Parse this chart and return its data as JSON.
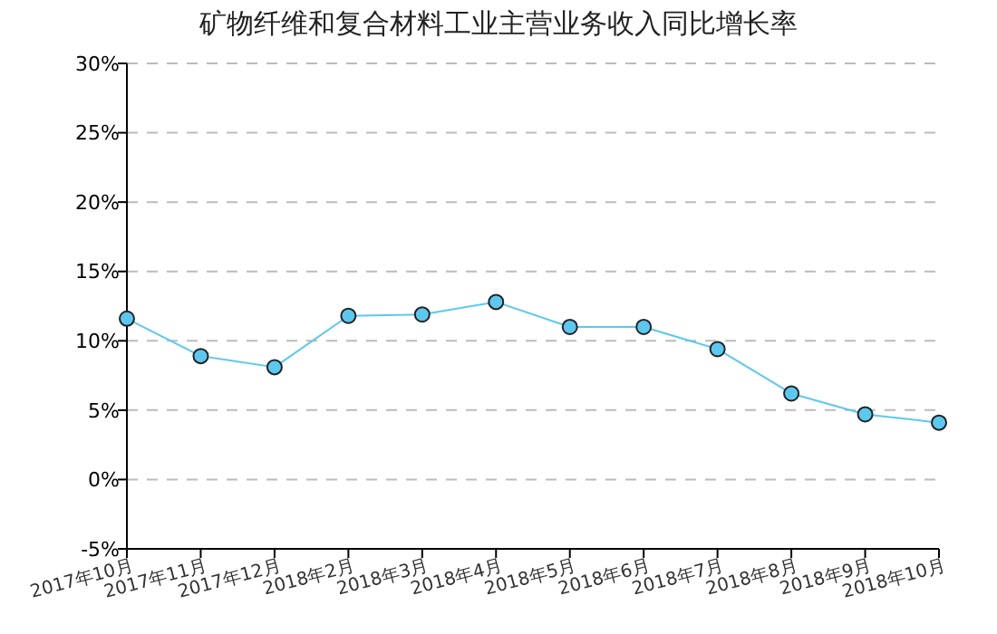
{
  "chart_data": {
    "type": "line",
    "title": "矿物纤维和复合材料工业主营业务收入同比增长率",
    "categories": [
      "2017年10月",
      "2017年11月",
      "2017年12月",
      "2018年2月",
      "2018年3月",
      "2018年4月",
      "2018年5月",
      "2018年6月",
      "2018年7月",
      "2018年8月",
      "2018年9月",
      "2018年10月"
    ],
    "series": [
      {
        "color": "#5bc8f0",
        "values": [
          11.6,
          8.9,
          8.1,
          11.8,
          11.9,
          12.8,
          11.0,
          11.0,
          9.4,
          6.2,
          4.7,
          4.1
        ]
      }
    ],
    "ylim": [
      -5,
      30
    ],
    "yticks": [
      {
        "value": -5,
        "label": "-5%"
      },
      {
        "value": 0,
        "label": "0%"
      },
      {
        "value": 5,
        "label": "5%"
      },
      {
        "value": 10,
        "label": "10%"
      },
      {
        "value": 15,
        "label": "15%"
      },
      {
        "value": 20,
        "label": "20%"
      },
      {
        "value": 25,
        "label": "25%"
      },
      {
        "value": 30,
        "label": "30%"
      }
    ],
    "grid": "y",
    "marker": "circle",
    "line_style": "solid"
  }
}
